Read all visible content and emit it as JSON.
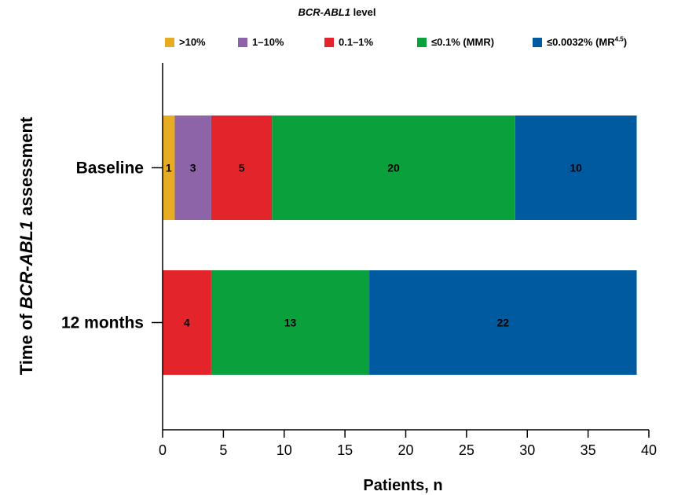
{
  "chart_data": {
    "type": "bar",
    "orientation": "horizontal",
    "stacked": true,
    "legend_title": {
      "italic_part": "BCR-ABL1",
      "rest": " level"
    },
    "legend_position": "top",
    "ylabel": {
      "prefix": "Time of ",
      "italic_part": "BCR-ABL1",
      "suffix": " assessment"
    },
    "xlabel": "Patients, n",
    "xlim": [
      0,
      40
    ],
    "xticks": [
      0,
      5,
      10,
      15,
      20,
      25,
      30,
      35,
      40
    ],
    "grid": false,
    "categories": [
      "Baseline",
      "12 months"
    ],
    "series": [
      {
        "name": ">10%",
        "color": "#e6ac24",
        "values": [
          1,
          0
        ]
      },
      {
        "name": "1–10%",
        "color": "#8d64a8",
        "values": [
          3,
          0
        ]
      },
      {
        "name": "0.1–1%",
        "color": "#e3242b",
        "values": [
          5,
          4
        ]
      },
      {
        "name": "≤0.1% (MMR)",
        "color": "#0aa03c",
        "values": [
          20,
          13
        ]
      },
      {
        "name": "≤0.0032% (MR",
        "name_sup": "4.5",
        "name_end": ")",
        "color": "#005aa0",
        "values": [
          10,
          22
        ]
      }
    ]
  }
}
